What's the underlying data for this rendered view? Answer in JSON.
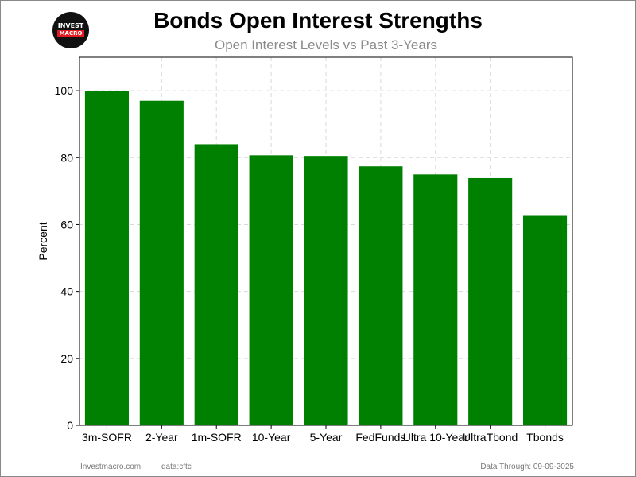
{
  "logo": {
    "top": "INVEST",
    "bottom": "MACRO"
  },
  "header": {
    "title": "Bonds Open Interest Strengths",
    "subtitle": "Open Interest Levels vs Past 3-Years"
  },
  "footer": {
    "site": "Investmacro.com",
    "source": "data:cftc",
    "through": "Data Through: 09-09-2025"
  },
  "chart_data": {
    "type": "bar",
    "title": "Bonds Open Interest Strengths",
    "subtitle": "Open Interest Levels vs Past 3-Years",
    "xlabel": "",
    "ylabel": "Percent",
    "categories": [
      "3m-SOFR",
      "2-Year",
      "1m-SOFR",
      "10-Year",
      "5-Year",
      "FedFunds",
      "Ultra 10-Year",
      "UltraTbond",
      "Tbonds"
    ],
    "values": [
      100,
      97,
      84,
      80.7,
      80.5,
      77.4,
      75,
      73.9,
      62.6
    ],
    "ylim": [
      0,
      110
    ],
    "yticks": [
      0,
      20,
      40,
      60,
      80,
      100
    ],
    "bar_color": "#008000",
    "grid": true,
    "legend": "none"
  }
}
